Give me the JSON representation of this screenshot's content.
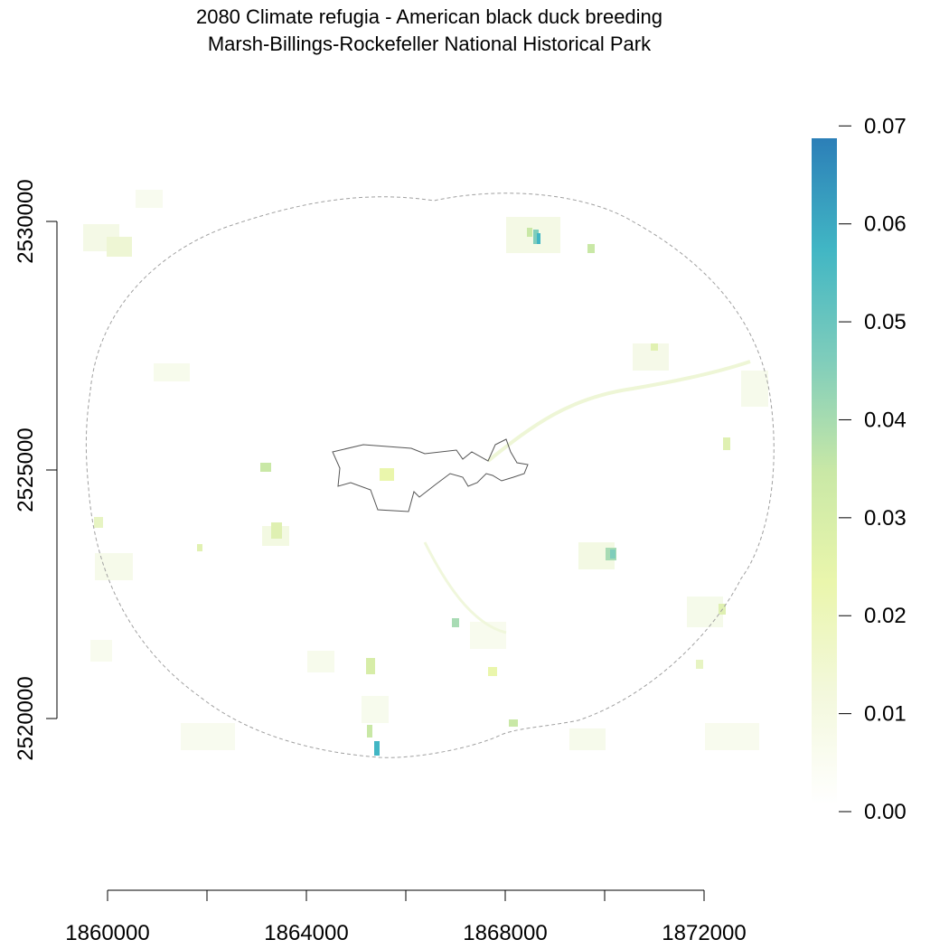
{
  "title": {
    "line1": "2080 Climate refugia - American black duck breeding",
    "line2": "Marsh-Billings-Rockefeller National Historical Park"
  },
  "map": {
    "x_axis": {
      "ticks": [
        1860000,
        1862000,
        1864000,
        1866000,
        1868000,
        1870000,
        1872000
      ],
      "labeled_ticks": [
        "1860000",
        "1864000",
        "1868000",
        "1872000"
      ]
    },
    "y_axis": {
      "ticks": [
        2520000,
        2525000,
        2530000
      ],
      "labeled_ticks": [
        "2520000",
        "2525000",
        "2530000"
      ]
    },
    "layers": [
      {
        "name": "refugia-raster",
        "value_range": [
          0,
          0.068
        ]
      },
      {
        "name": "buffer-boundary",
        "style": "dashed",
        "color": "#a0a0a0"
      },
      {
        "name": "park-boundary",
        "style": "solid",
        "color": "#555555"
      }
    ]
  },
  "legend": {
    "min": 0,
    "max": 0.068,
    "labels": [
      "0.00",
      "0.01",
      "0.02",
      "0.03",
      "0.04",
      "0.05",
      "0.06",
      "0.07"
    ],
    "colors": [
      "#ffffff",
      "#f3f8dc",
      "#eaf6ac",
      "#c9e8a6",
      "#7fcdbb",
      "#41b6c4",
      "#2c7fb8"
    ]
  }
}
